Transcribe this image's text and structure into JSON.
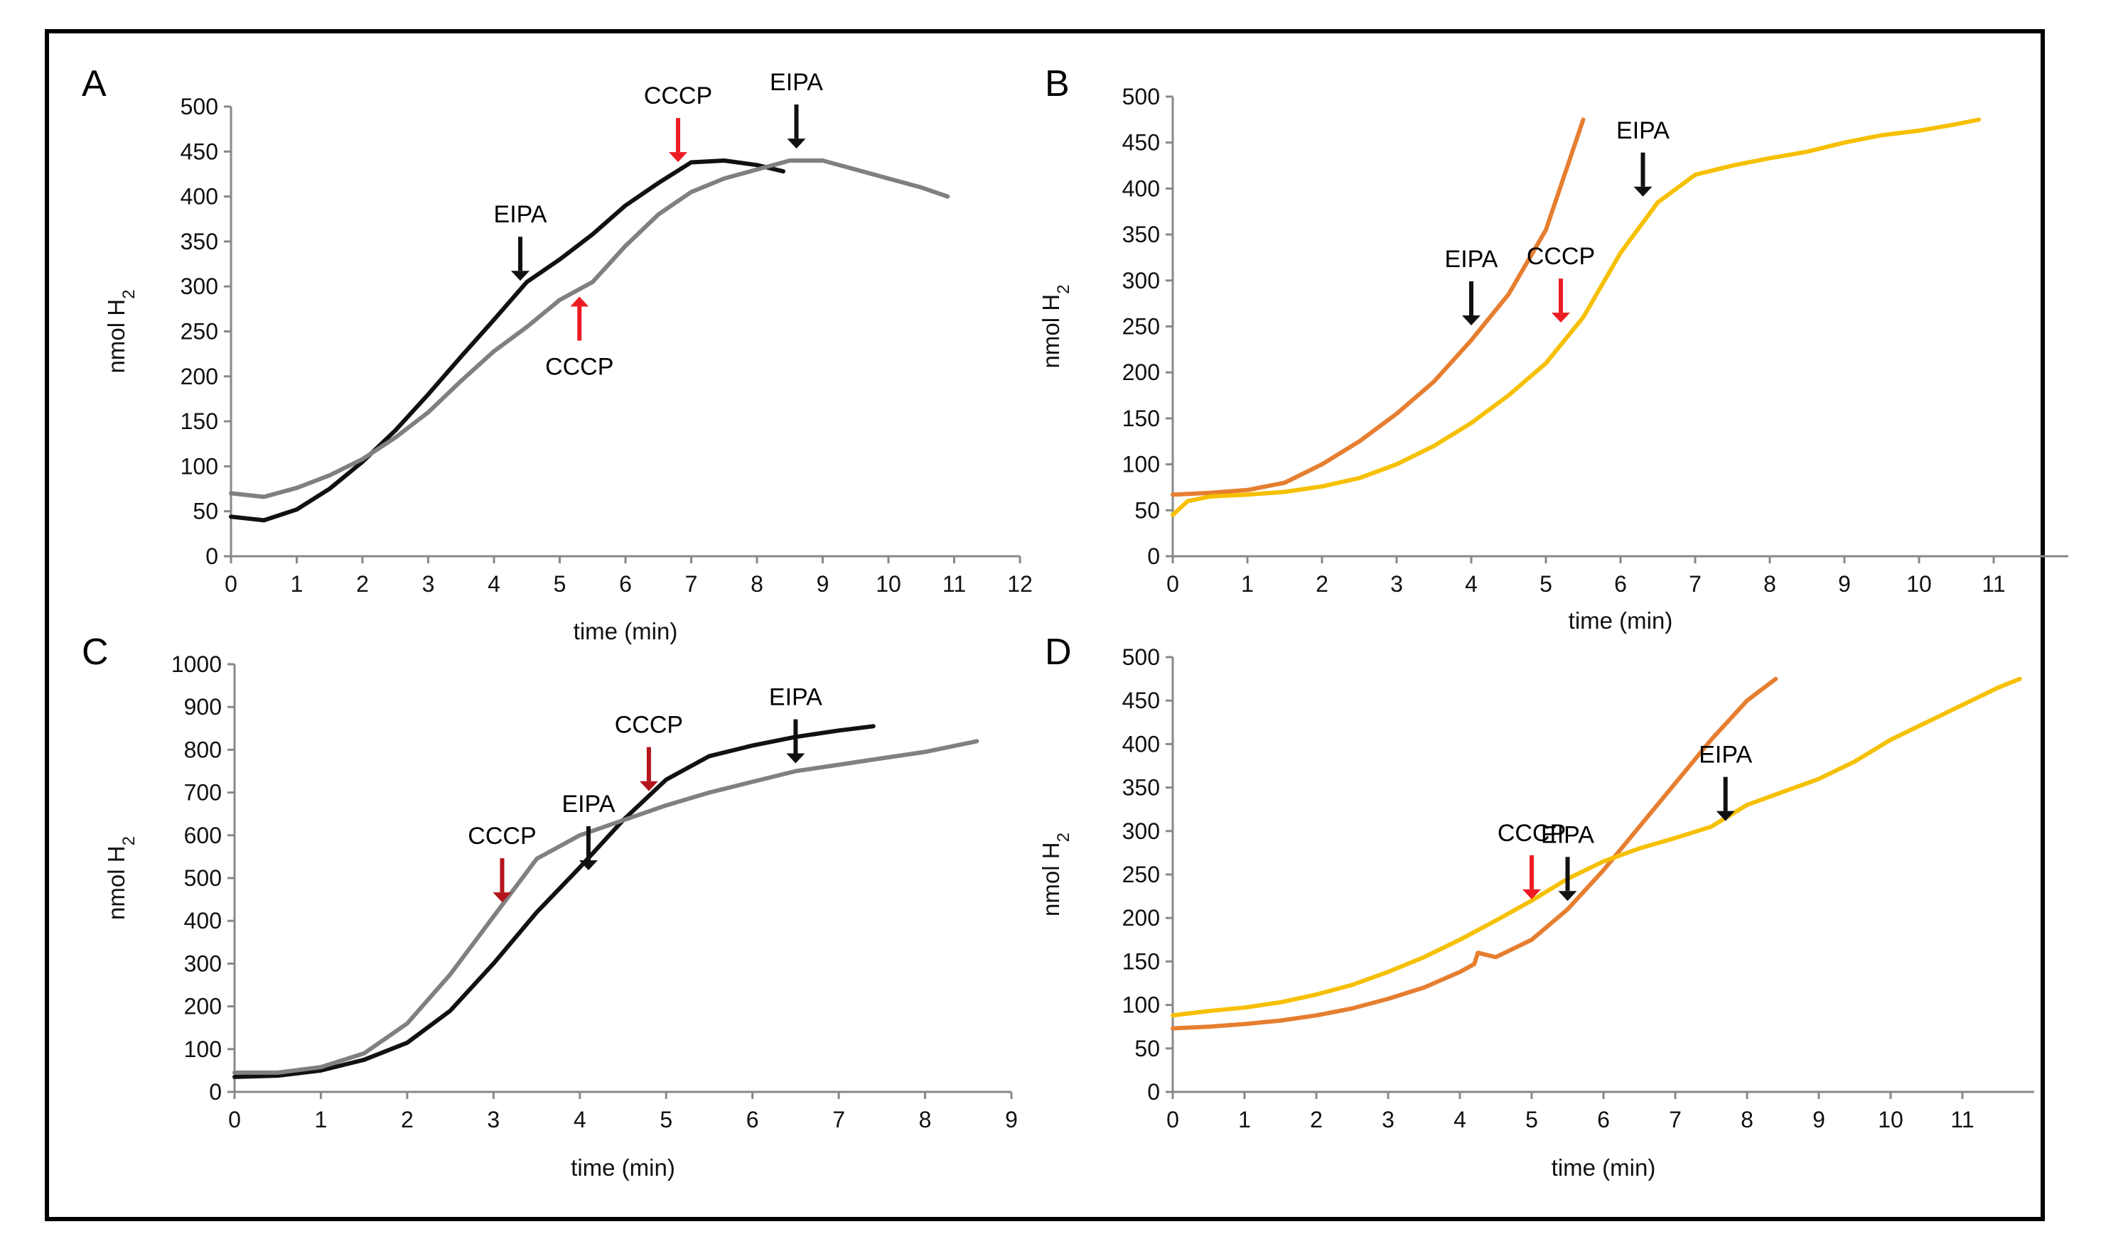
{
  "figure": {
    "border_color": "#000000"
  },
  "colors": {
    "black": "#111111",
    "gray": "#808080",
    "orange": "#e67e30",
    "yellow": "#f6c000",
    "red": "#ee1c24",
    "darkred": "#b3141b"
  },
  "chart_data": [
    {
      "panel": "A",
      "type": "line",
      "xlabel": "time (min)",
      "ylabel": "nmol H",
      "ylabel_sub": "2",
      "xlim": [
        0,
        12
      ],
      "ylim": [
        0,
        500
      ],
      "xticks": [
        0,
        1,
        2,
        3,
        4,
        5,
        6,
        7,
        8,
        9,
        10,
        11,
        12
      ],
      "yticks": [
        0,
        50,
        100,
        150,
        200,
        250,
        300,
        350,
        400,
        450,
        500
      ],
      "series": [
        {
          "name": "black",
          "color": "#111111",
          "x": [
            0,
            0.5,
            1,
            1.5,
            2,
            2.5,
            3,
            3.5,
            4,
            4.5,
            5,
            5.5,
            6,
            6.5,
            7,
            7.5,
            8,
            8.4
          ],
          "y": [
            44,
            40,
            52,
            75,
            105,
            140,
            180,
            222,
            263,
            305,
            330,
            358,
            390,
            415,
            438,
            440,
            435,
            428
          ]
        },
        {
          "name": "gray",
          "color": "#808080",
          "x": [
            0,
            0.5,
            1,
            1.5,
            2,
            2.5,
            3,
            3.5,
            4,
            4.5,
            5,
            5.5,
            6,
            6.5,
            7,
            7.5,
            8,
            8.5,
            9,
            9.5,
            10,
            10.5,
            10.9
          ],
          "y": [
            70,
            66,
            76,
            90,
            108,
            132,
            160,
            195,
            228,
            255,
            285,
            305,
            345,
            380,
            405,
            420,
            430,
            440,
            440,
            430,
            420,
            410,
            400
          ]
        }
      ],
      "annotations": [
        {
          "text": "EIPA",
          "x": 4.4,
          "y": 300,
          "color": "#111111"
        },
        {
          "text": "CCCP",
          "x": 5.3,
          "y": 295,
          "color": "#ee1c24",
          "direction": "up"
        },
        {
          "text": "CCCP",
          "x": 6.8,
          "y": 432,
          "color": "#ee1c24"
        },
        {
          "text": "EIPA",
          "x": 8.6,
          "y": 447,
          "color": "#111111"
        }
      ]
    },
    {
      "panel": "B",
      "type": "line",
      "xlabel": "time (min)",
      "ylabel": "nmol H",
      "ylabel_sub": "2",
      "xlim": [
        0,
        12
      ],
      "ylim": [
        0,
        500
      ],
      "xticks": [
        0,
        1,
        2,
        3,
        4,
        5,
        6,
        7,
        8,
        9,
        10,
        11
      ],
      "yticks": [
        0,
        50,
        100,
        150,
        200,
        250,
        300,
        350,
        400,
        450,
        500
      ],
      "series": [
        {
          "name": "orange",
          "color": "#e67e30",
          "x": [
            0,
            0.5,
            1,
            1.5,
            2,
            2.5,
            3,
            3.5,
            4,
            4.5,
            5,
            5.5
          ],
          "y": [
            67,
            69,
            72,
            80,
            100,
            125,
            155,
            190,
            235,
            285,
            355,
            475
          ]
        },
        {
          "name": "yellow",
          "color": "#f6c000",
          "x": [
            0,
            0.2,
            0.5,
            1,
            1.5,
            2,
            2.5,
            3,
            3.5,
            4,
            4.5,
            5,
            5.5,
            6,
            6.5,
            7,
            7.5,
            8,
            8.5,
            9,
            9.5,
            10,
            10.5,
            10.8
          ],
          "y": [
            45,
            60,
            65,
            67,
            70,
            76,
            85,
            100,
            120,
            145,
            175,
            210,
            260,
            330,
            385,
            415,
            425,
            433,
            440,
            450,
            458,
            463,
            470,
            475
          ]
        }
      ],
      "annotations": [
        {
          "text": "EIPA",
          "x": 4.0,
          "y": 245,
          "color": "#111111"
        },
        {
          "text": "CCCP",
          "x": 5.2,
          "y": 248,
          "color": "#ee1c24"
        },
        {
          "text": "EIPA",
          "x": 6.3,
          "y": 385,
          "color": "#111111"
        }
      ]
    },
    {
      "panel": "C",
      "type": "line",
      "xlabel": "time (min)",
      "ylabel": "nmol H",
      "ylabel_sub": "2",
      "xlim": [
        0,
        9
      ],
      "ylim": [
        0,
        1000
      ],
      "xticks": [
        0,
        1,
        2,
        3,
        4,
        5,
        6,
        7,
        8,
        9
      ],
      "yticks": [
        0,
        100,
        200,
        300,
        400,
        500,
        600,
        700,
        800,
        900,
        1000
      ],
      "series": [
        {
          "name": "black",
          "color": "#111111",
          "x": [
            0,
            0.5,
            1,
            1.5,
            2,
            2.5,
            3,
            3.5,
            4,
            4.5,
            5,
            5.5,
            6,
            6.5,
            7,
            7.4
          ],
          "y": [
            35,
            38,
            50,
            75,
            115,
            190,
            300,
            420,
            525,
            635,
            730,
            785,
            810,
            830,
            845,
            855
          ]
        },
        {
          "name": "gray",
          "color": "#808080",
          "x": [
            0,
            0.5,
            1,
            1.5,
            2,
            2.5,
            3,
            3.5,
            4,
            4.5,
            5,
            5.5,
            6,
            6.5,
            7,
            7.5,
            8,
            8.6
          ],
          "y": [
            45,
            45,
            58,
            90,
            160,
            275,
            410,
            545,
            600,
            635,
            670,
            700,
            725,
            750,
            765,
            780,
            795,
            820
          ]
        }
      ],
      "annotations": [
        {
          "text": "CCCP",
          "x": 3.1,
          "y": 430,
          "color": "#b3141b"
        },
        {
          "text": "EIPA",
          "x": 4.1,
          "y": 505,
          "color": "#111111"
        },
        {
          "text": "CCCP",
          "x": 4.8,
          "y": 690,
          "color": "#b3141b"
        },
        {
          "text": "EIPA",
          "x": 6.5,
          "y": 755,
          "color": "#111111"
        }
      ]
    },
    {
      "panel": "D",
      "type": "line",
      "xlabel": "time (min)",
      "ylabel": "nmol H",
      "ylabel_sub": "2",
      "xlim": [
        0,
        12
      ],
      "ylim": [
        0,
        500
      ],
      "xticks": [
        0,
        1,
        2,
        3,
        4,
        5,
        6,
        7,
        8,
        9,
        10,
        11
      ],
      "yticks": [
        0,
        50,
        100,
        150,
        200,
        250,
        300,
        350,
        400,
        450,
        500
      ],
      "series": [
        {
          "name": "orange",
          "color": "#e67e30",
          "x": [
            0,
            0.5,
            1,
            1.5,
            2,
            2.5,
            3,
            3.5,
            4,
            4.2,
            4.25,
            4.5,
            5,
            5.5,
            6,
            6.5,
            7,
            7.5,
            8,
            8.4
          ],
          "y": [
            73,
            75,
            78,
            82,
            88,
            96,
            107,
            120,
            138,
            147,
            160,
            155,
            175,
            210,
            255,
            305,
            355,
            405,
            450,
            475
          ]
        },
        {
          "name": "yellow",
          "color": "#f6c000",
          "x": [
            0,
            0.5,
            1,
            1.5,
            2,
            2.5,
            3,
            3.5,
            4,
            4.5,
            5,
            5.5,
            6,
            6.5,
            7,
            7.5,
            8,
            8.5,
            9,
            9.5,
            10,
            10.5,
            11,
            11.5,
            11.8
          ],
          "y": [
            88,
            93,
            97,
            103,
            112,
            123,
            138,
            155,
            175,
            197,
            220,
            245,
            265,
            280,
            292,
            305,
            330,
            345,
            360,
            380,
            405,
            425,
            445,
            465,
            475
          ]
        }
      ],
      "annotations": [
        {
          "text": "CCCP",
          "x": 5.0,
          "y": 215,
          "color": "#ee1c24"
        },
        {
          "text": "EIPA",
          "x": 5.5,
          "y": 213,
          "color": "#111111"
        },
        {
          "text": "EIPA",
          "x": 7.7,
          "y": 305,
          "color": "#111111"
        }
      ]
    }
  ]
}
